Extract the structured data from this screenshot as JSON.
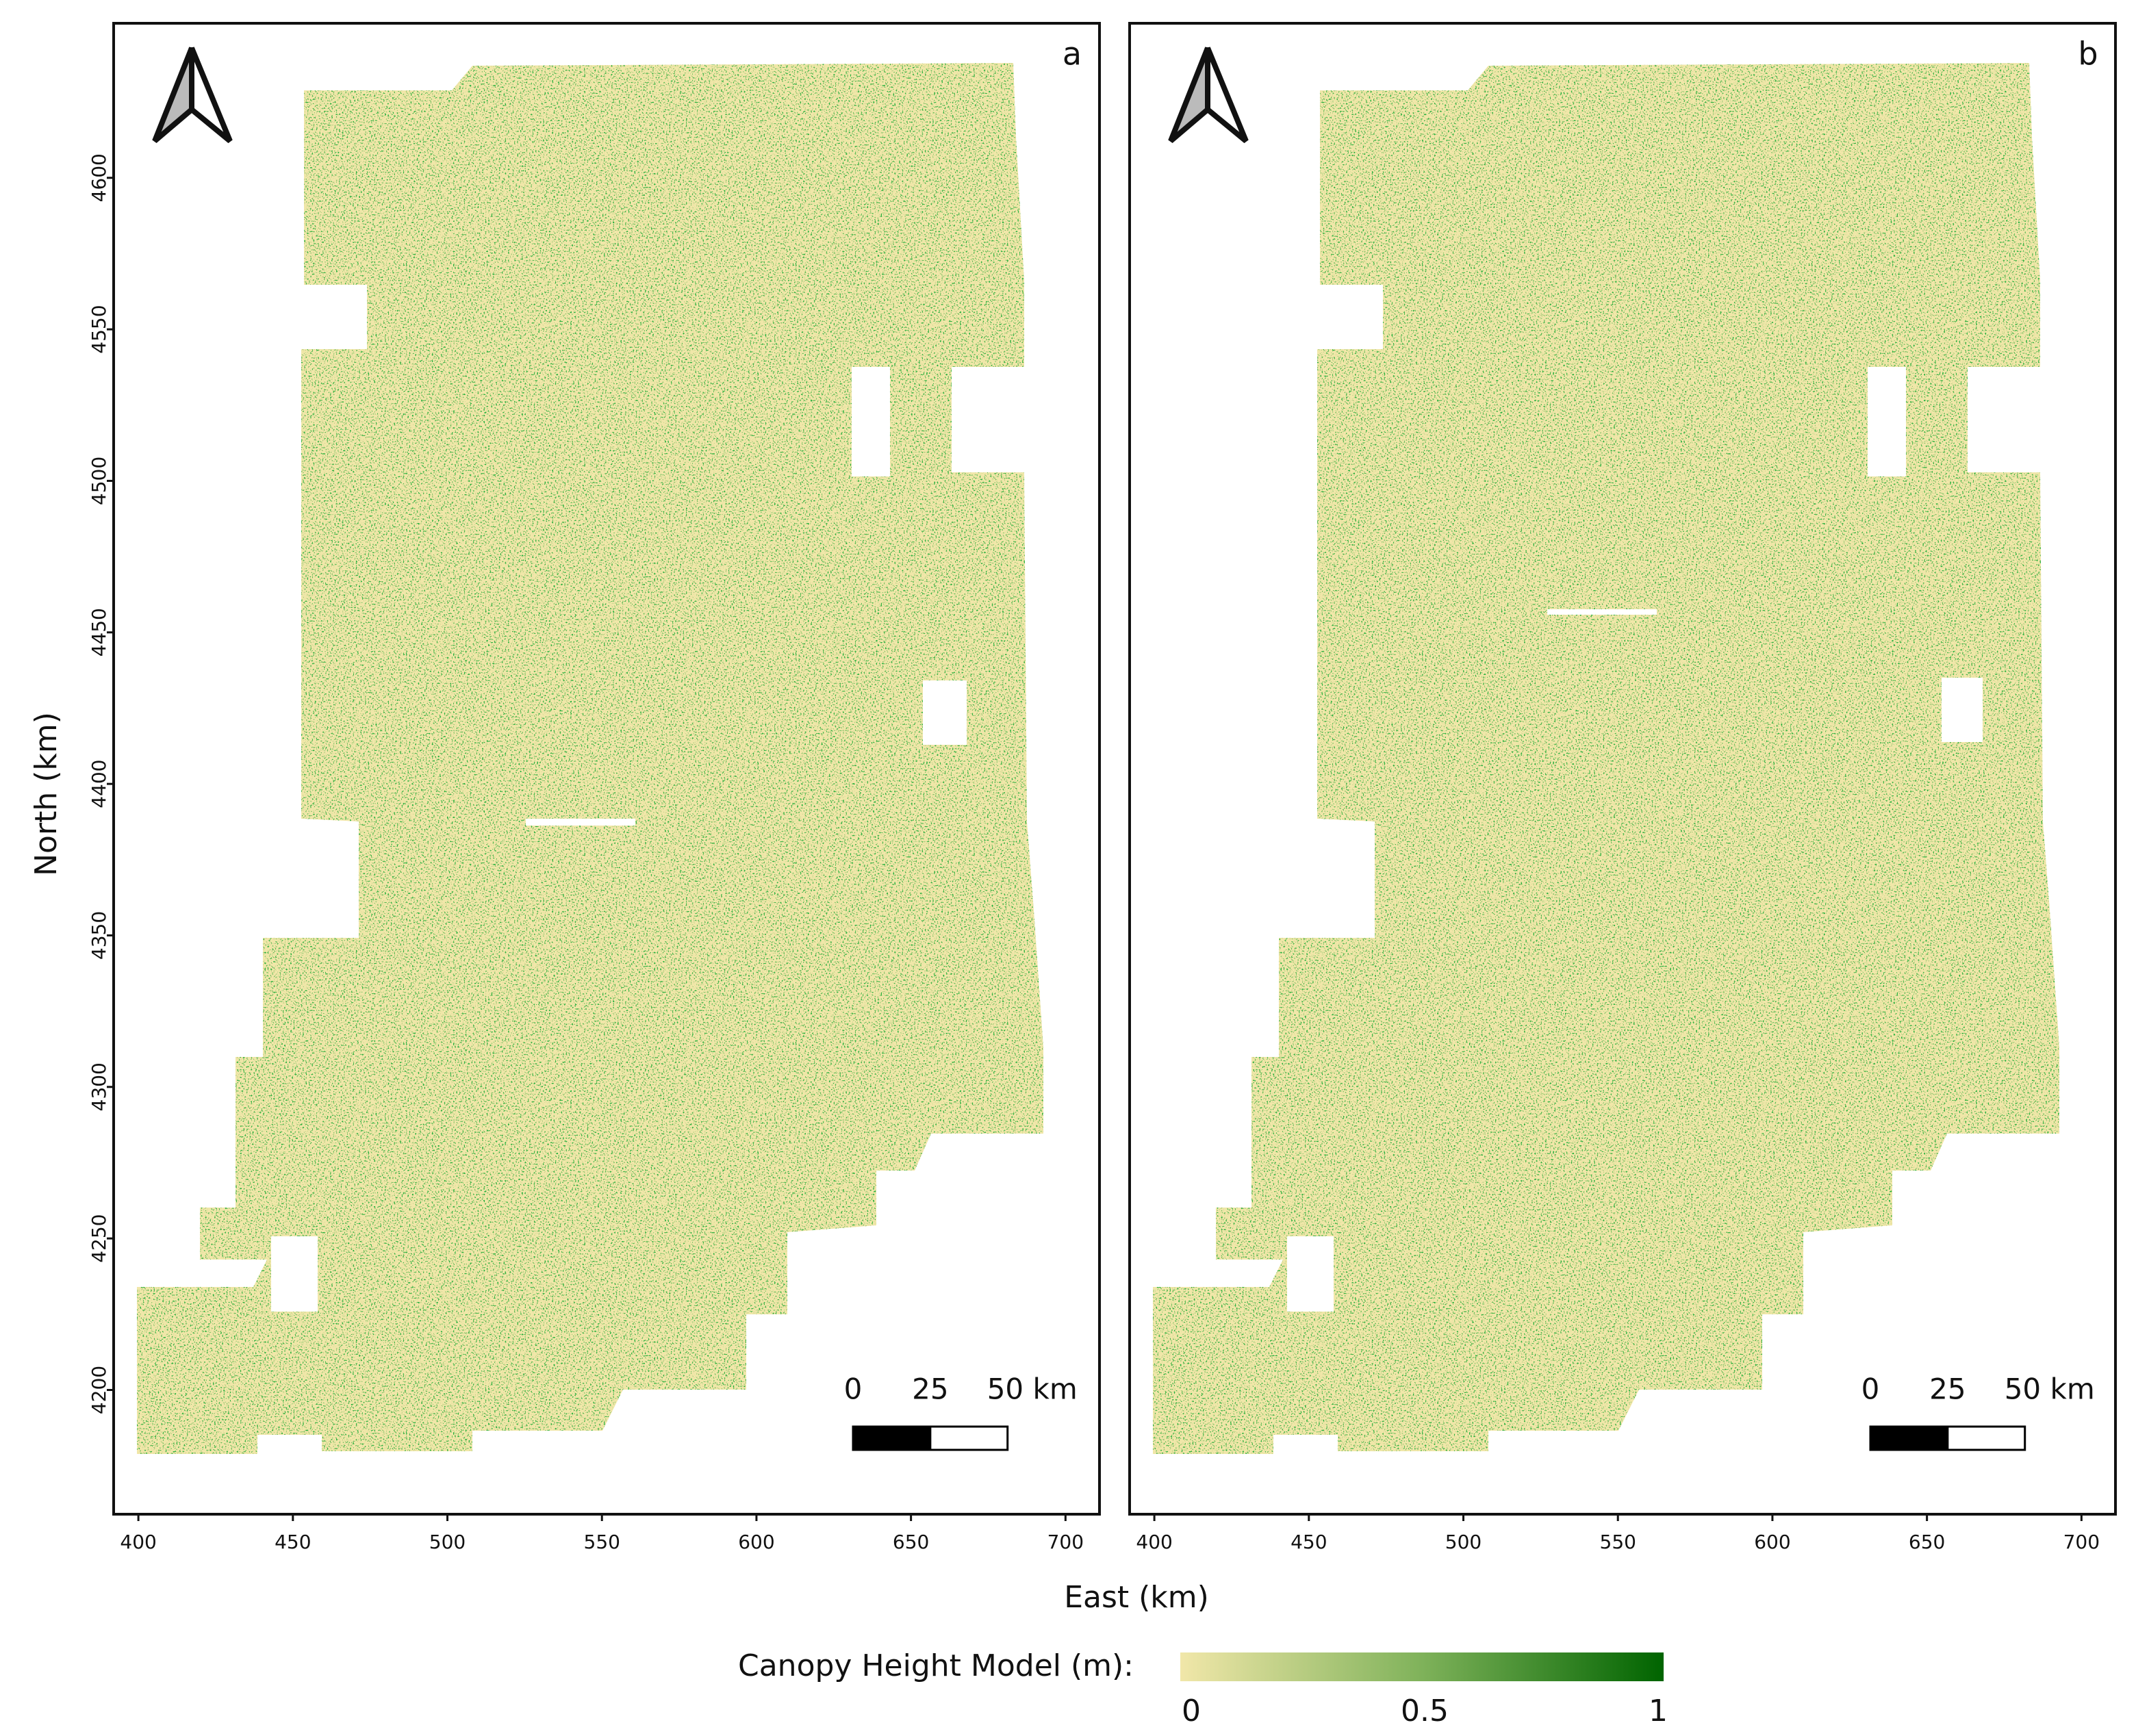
{
  "panels": [
    {
      "label": "a"
    },
    {
      "label": "b"
    }
  ],
  "x_axis": {
    "label": "East (km)",
    "xlim": [
      392,
      711
    ],
    "xticks": [
      400,
      450,
      500,
      550,
      600,
      650,
      700
    ]
  },
  "y_axis": {
    "label": "North (km)",
    "ylim": [
      4159,
      4651
    ],
    "yticks": [
      4200,
      4250,
      4300,
      4350,
      4400,
      4450,
      4500,
      4550,
      4600
    ]
  },
  "scale_bar": {
    "ticks": [
      0,
      25,
      {
        "value": 50,
        "label": "50 km"
      }
    ]
  },
  "colorbar": {
    "title": "Canopy Height Model (m):",
    "range": [
      0,
      1
    ],
    "ticks": [
      0,
      0.5,
      1
    ],
    "colors": [
      "#f1e7a9",
      "#7fb25a",
      "#006400"
    ]
  }
}
